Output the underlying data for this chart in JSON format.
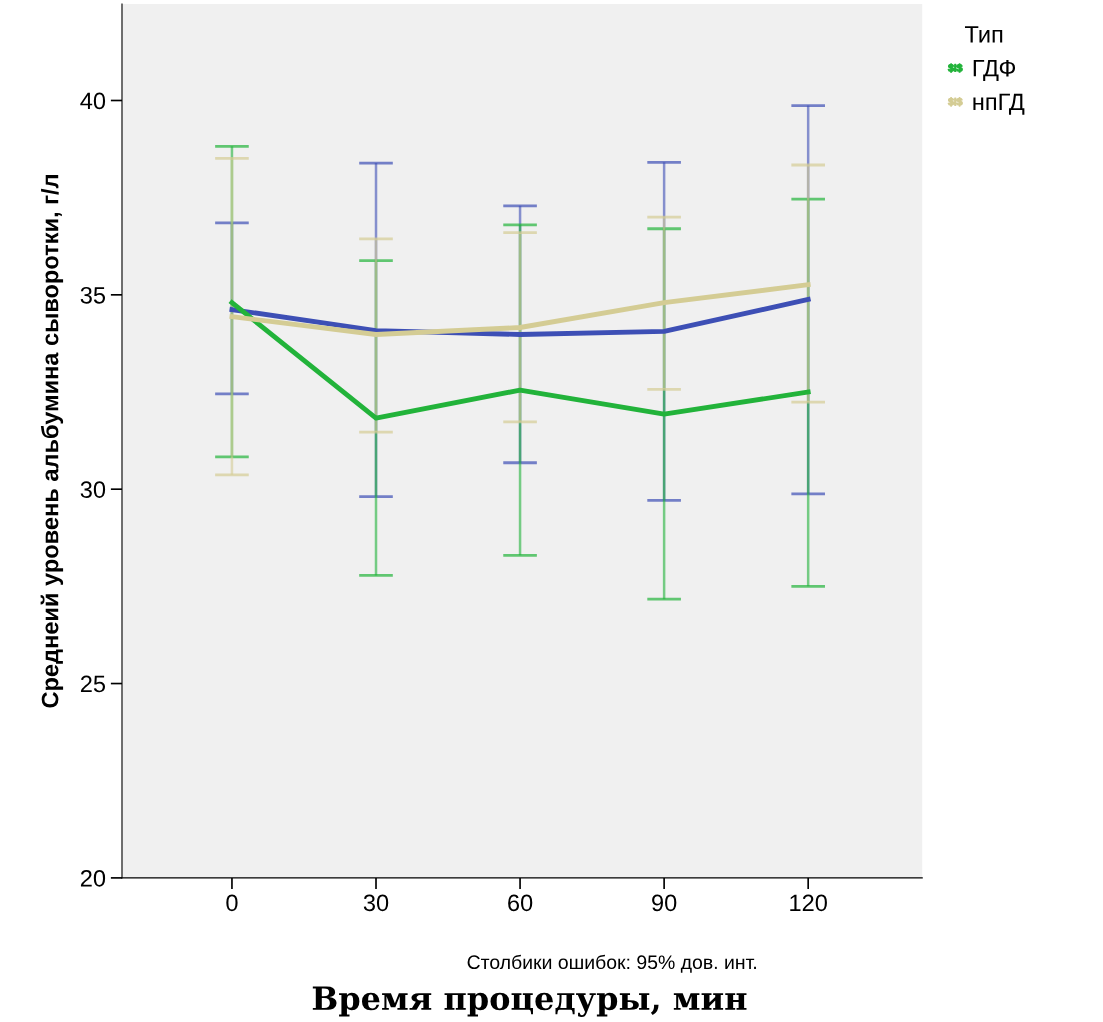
{
  "chart_data": {
    "type": "line",
    "xlabel": "Время процедуры, мин",
    "ylabel": "Среднеий уровень альбумина сыворотки, г/л",
    "legend_title": "Тип",
    "annotations": [
      "Столбики ошибок: 95% дов. инт."
    ],
    "x": [
      0,
      30,
      60,
      90,
      120
    ],
    "series": [
      {
        "color": "#3d4fb5",
        "values": [
          34.62,
          34.08,
          33.98,
          34.06,
          34.88
        ],
        "errors": [
          [
            32.45,
            36.85
          ],
          [
            29.81,
            38.39
          ],
          [
            30.68,
            37.29
          ],
          [
            29.71,
            38.41
          ],
          [
            29.88,
            39.87
          ]
        ]
      },
      {
        "name": "ГДФ",
        "color": "#22b33a",
        "values": [
          34.8,
          31.83,
          32.55,
          31.93,
          32.5
        ],
        "errors": [
          [
            30.83,
            38.82
          ],
          [
            27.78,
            35.88
          ],
          [
            28.3,
            36.8
          ],
          [
            27.17,
            36.7
          ],
          [
            27.5,
            37.46
          ]
        ]
      },
      {
        "name": "нпГД",
        "color": "#d4cc94",
        "values": [
          34.44,
          33.98,
          34.16,
          34.8,
          35.26
        ],
        "errors": [
          [
            30.37,
            38.51
          ],
          [
            31.47,
            36.44
          ],
          [
            31.73,
            36.6
          ],
          [
            32.57,
            37.0
          ],
          [
            32.24,
            38.34
          ]
        ]
      }
    ],
    "xlim": [
      -22.9,
      143.75
    ],
    "ylim": [
      20,
      42.48
    ],
    "xticks": [
      0,
      30,
      60,
      90,
      120
    ],
    "yticks": [
      20,
      25,
      30,
      35,
      40
    ],
    "grid": false,
    "legend": "top right",
    "marker": "none",
    "line_style": "solid"
  }
}
